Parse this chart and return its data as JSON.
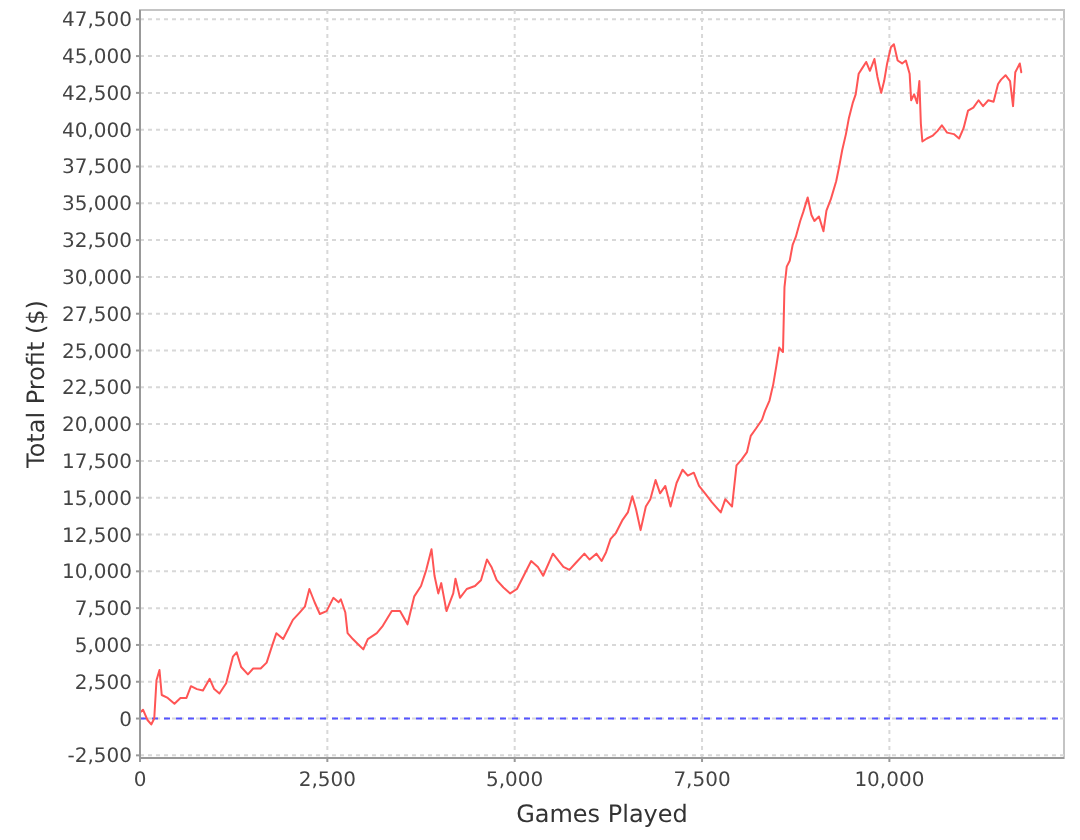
{
  "chart_data": {
    "type": "line",
    "xlabel": "Games Played",
    "ylabel": "Total Profit ($)",
    "xlim": [
      0,
      12330
    ],
    "ylim": [
      -2680,
      48130
    ],
    "xticks": [
      0,
      {
        "value": 2500,
        "label": "2,500"
      },
      {
        "value": 5000,
        "label": "5,000"
      },
      {
        "value": 7500,
        "label": "7,500"
      },
      {
        "value": 10000,
        "label": "10,000"
      }
    ],
    "yticks": [
      {
        "value": -2500,
        "label": "-2,500"
      },
      0,
      {
        "value": 2500,
        "label": "2,500"
      },
      {
        "value": 5000,
        "label": "5,000"
      },
      {
        "value": 7500,
        "label": "7,500"
      },
      {
        "value": 10000,
        "label": "10,000"
      },
      {
        "value": 12500,
        "label": "12,500"
      },
      {
        "value": 15000,
        "label": "15,000"
      },
      {
        "value": 17500,
        "label": "17,500"
      },
      {
        "value": 20000,
        "label": "20,000"
      },
      {
        "value": 22500,
        "label": "22,500"
      },
      {
        "value": 25000,
        "label": "25,000"
      },
      {
        "value": 27500,
        "label": "27,500"
      },
      {
        "value": 30000,
        "label": "30,000"
      },
      {
        "value": 32500,
        "label": "32,500"
      },
      {
        "value": 35000,
        "label": "35,000"
      },
      {
        "value": 37500,
        "label": "37,500"
      },
      {
        "value": 40000,
        "label": "40,000"
      },
      {
        "value": 42500,
        "label": "42,500"
      },
      {
        "value": 45000,
        "label": "45,000"
      },
      {
        "value": 47500,
        "label": "47,500"
      }
    ],
    "grid": true,
    "ref_lines": [
      {
        "axis": "y",
        "value": 0,
        "color": "#5555ff",
        "line_style": "dashed"
      }
    ],
    "x": [
      0,
      40,
      100,
      150,
      190,
      220,
      260,
      290,
      370,
      460,
      540,
      620,
      680,
      760,
      840,
      930,
      990,
      1060,
      1150,
      1240,
      1290,
      1350,
      1440,
      1510,
      1610,
      1690,
      1760,
      1820,
      1910,
      1970,
      2040,
      2130,
      2200,
      2260,
      2330,
      2400,
      2490,
      2580,
      2650,
      2680,
      2740,
      2770,
      2840,
      2920,
      2980,
      3040,
      3160,
      3240,
      3360,
      3470,
      3570,
      3660,
      3750,
      3820,
      3890,
      3930,
      3980,
      4020,
      4090,
      4180,
      4210,
      4270,
      4360,
      4470,
      4550,
      4630,
      4690,
      4760,
      4850,
      4940,
      5030,
      5120,
      5220,
      5310,
      5380,
      5510,
      5650,
      5730,
      5820,
      5930,
      6000,
      6090,
      6160,
      6220,
      6280,
      6350,
      6440,
      6510,
      6570,
      6620,
      6680,
      6750,
      6810,
      6880,
      6940,
      7010,
      7080,
      7160,
      7240,
      7310,
      7390,
      7460,
      7540,
      7630,
      7750,
      7810,
      7900,
      7960,
      8030,
      8100,
      8150,
      8220,
      8300,
      8340,
      8400,
      8450,
      8490,
      8530,
      8580,
      8600,
      8630,
      8670,
      8710,
      8750,
      8810,
      8850,
      8910,
      8960,
      9000,
      9060,
      9120,
      9160,
      9220,
      9290,
      9330,
      9370,
      9420,
      9460,
      9510,
      9550,
      9590,
      9640,
      9690,
      9740,
      9800,
      9840,
      9890,
      9930,
      9970,
      10020,
      10060,
      10110,
      10170,
      10220,
      10270,
      10290,
      10330,
      10370,
      10400,
      10420,
      10440,
      10500,
      10580,
      10640,
      10700,
      10770,
      10860,
      10930,
      10990,
      11050,
      11120,
      11190,
      11250,
      11320,
      11390,
      11450,
      11490,
      11550,
      11610,
      11650,
      11680,
      11710,
      11740,
      11760
    ],
    "series": [
      {
        "color": "#ff5555",
        "values": [
          400,
          600,
          -100,
          -400,
          0,
          2600,
          3300,
          1600,
          1400,
          1000,
          1400,
          1400,
          2200,
          2000,
          1900,
          2700,
          2000,
          1700,
          2400,
          4200,
          4500,
          3500,
          3000,
          3400,
          3400,
          3800,
          4900,
          5800,
          5400,
          6000,
          6700,
          7200,
          7600,
          8800,
          7900,
          7100,
          7300,
          8200,
          7900,
          8100,
          7200,
          5800,
          5400,
          5000,
          4700,
          5400,
          5800,
          6300,
          7300,
          7300,
          6400,
          8300,
          9000,
          10100,
          11500,
          9700,
          8500,
          9200,
          7300,
          8500,
          9500,
          8200,
          8800,
          9000,
          9400,
          10800,
          10300,
          9400,
          8900,
          8500,
          8800,
          9700,
          10700,
          10300,
          9700,
          11200,
          10300,
          10100,
          10600,
          11200,
          10800,
          11200,
          10700,
          11300,
          12200,
          12600,
          13500,
          14000,
          15100,
          14200,
          12800,
          14400,
          14900,
          16200,
          15300,
          15800,
          14400,
          16000,
          16900,
          16500,
          16700,
          15800,
          15300,
          14700,
          14000,
          14900,
          14400,
          17200,
          17600,
          18100,
          19200,
          19700,
          20300,
          20900,
          21600,
          22700,
          23900,
          25200,
          24900,
          29300,
          30700,
          31100,
          32200,
          32700,
          33800,
          34400,
          35400,
          34200,
          33800,
          34100,
          33100,
          34500,
          35300,
          36500,
          37500,
          38600,
          39700,
          40800,
          41800,
          42400,
          43800,
          44200,
          44600,
          44000,
          44800,
          43600,
          42500,
          43300,
          44500,
          45600,
          45800,
          44700,
          44500,
          44700,
          43800,
          42000,
          42400,
          41800,
          43300,
          40400,
          39200,
          39400,
          39600,
          39900,
          40300,
          39800,
          39700,
          39400,
          40100,
          41300,
          41500,
          42000,
          41600,
          42000,
          41900,
          43100,
          43400,
          43700,
          43300,
          41600,
          43900,
          44200,
          44500,
          43900
        ]
      }
    ]
  }
}
